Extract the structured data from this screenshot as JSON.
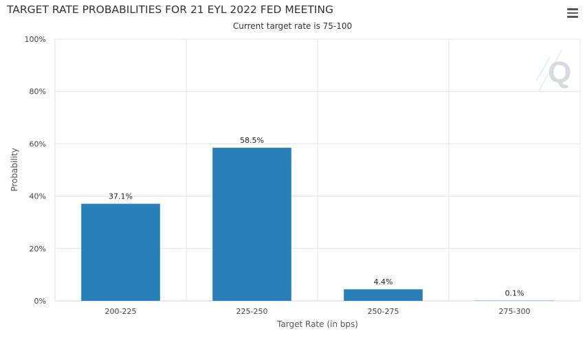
{
  "header": {
    "title": "TARGET RATE PROBABILITIES FOR 21 EYL 2022 FED MEETING",
    "subtitle": "Current target rate is 75-100",
    "menu_icon": "hamburger-menu-icon",
    "watermark_icon": "q-logo-icon"
  },
  "colors": {
    "bar": "#2980b9",
    "grid": "#e3e3e3",
    "axis": "#ccd6eb"
  },
  "chart_data": {
    "type": "bar",
    "categories": [
      "200-225",
      "225-250",
      "250-275",
      "275-300"
    ],
    "values": [
      37.1,
      58.5,
      4.4,
      0.1
    ],
    "labels": [
      "37.1%",
      "58.5%",
      "4.4%",
      "0.1%"
    ],
    "title": "TARGET RATE PROBABILITIES FOR 21 EYL 2022 FED MEETING",
    "subtitle": "Current target rate is 75-100",
    "xlabel": "Target Rate (in bps)",
    "ylabel": "Probability",
    "ylim": [
      0,
      100
    ],
    "yticks": [
      "0%",
      "20%",
      "40%",
      "60%",
      "80%",
      "100%"
    ],
    "ytick_values": [
      0,
      20,
      40,
      60,
      80,
      100
    ],
    "grid": true,
    "legend": false
  }
}
